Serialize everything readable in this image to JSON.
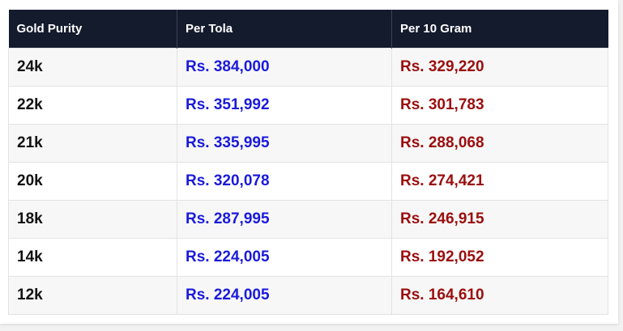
{
  "table": {
    "headers": {
      "purity": "Gold Purity",
      "tola": "Per Tola",
      "gram": "Per 10 Gram"
    },
    "rows": [
      {
        "purity": "24k",
        "tola": "Rs. 384,000",
        "gram": "Rs. 329,220"
      },
      {
        "purity": "22k",
        "tola": "Rs. 351,992",
        "gram": "Rs. 301,783"
      },
      {
        "purity": "21k",
        "tola": "Rs. 335,995",
        "gram": "Rs. 288,068"
      },
      {
        "purity": "20k",
        "tola": "Rs. 320,078",
        "gram": "Rs. 274,421"
      },
      {
        "purity": "18k",
        "tola": "Rs. 287,995",
        "gram": "Rs. 246,915"
      },
      {
        "purity": "14k",
        "tola": "Rs. 224,005",
        "gram": "Rs. 192,052"
      },
      {
        "purity": "12k",
        "tola": "Rs. 224,005",
        "gram": "Rs. 164,610"
      }
    ]
  },
  "colors": {
    "header_bg": "#141b2d",
    "tola_text": "#1a1adb",
    "gram_text": "#9b0e0e"
  }
}
